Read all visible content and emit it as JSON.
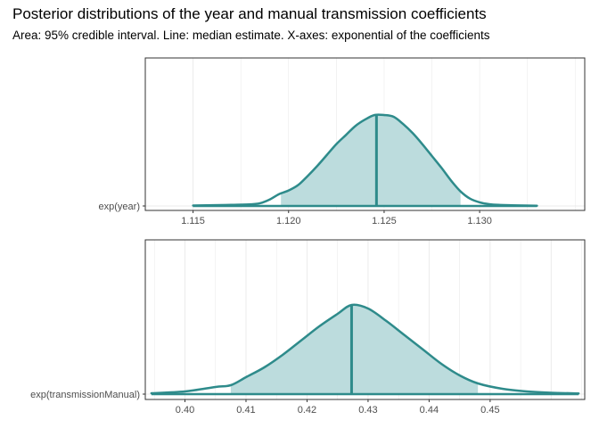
{
  "header": {
    "title": "Posterior distributions of the year and manual transmission coefficients",
    "subtitle": "Area: 95% credible interval. Line: median estimate. X-axes: exponential of the coefficients"
  },
  "colors": {
    "line": "#2e8b8b",
    "fill": "#bcdcdd",
    "grid": "#ebebeb",
    "border": "#333333"
  },
  "chart_data": [
    {
      "type": "area",
      "ylabel": "exp(year)",
      "xlim": [
        1.1125,
        1.1355
      ],
      "xticks": [
        1.115,
        1.12,
        1.125,
        1.13
      ],
      "xtick_labels": [
        "1.115",
        "1.120",
        "1.125",
        "1.130"
      ],
      "ci": [
        1.1196,
        1.129
      ],
      "median": 1.1246,
      "density": {
        "x": [
          1.115,
          1.117,
          1.118,
          1.1185,
          1.119,
          1.1195,
          1.12,
          1.1205,
          1.121,
          1.1215,
          1.122,
          1.1225,
          1.123,
          1.1235,
          1.124,
          1.1245,
          1.125,
          1.1255,
          1.126,
          1.1265,
          1.127,
          1.1275,
          1.128,
          1.1285,
          1.129,
          1.1295,
          1.13,
          1.1305,
          1.131,
          1.132,
          1.133
        ],
        "y": [
          0.005,
          0.012,
          0.018,
          0.03,
          0.07,
          0.13,
          0.17,
          0.23,
          0.33,
          0.44,
          0.56,
          0.68,
          0.78,
          0.88,
          0.95,
          1.0,
          1.0,
          0.98,
          0.9,
          0.8,
          0.68,
          0.55,
          0.42,
          0.28,
          0.16,
          0.08,
          0.04,
          0.02,
          0.012,
          0.006,
          0.003
        ]
      }
    },
    {
      "type": "area",
      "ylabel": "exp(transmissionManual)",
      "xlim": [
        0.3935,
        0.4655
      ],
      "xticks": [
        0.4,
        0.41,
        0.42,
        0.43,
        0.44,
        0.45
      ],
      "xtick_labels": [
        "0.40",
        "0.41",
        "0.42",
        "0.43",
        "0.44",
        "0.45"
      ],
      "ci": [
        0.4075,
        0.448
      ],
      "median": 0.4273,
      "density": {
        "x": [
          0.3945,
          0.4,
          0.405,
          0.4075,
          0.41,
          0.413,
          0.416,
          0.419,
          0.422,
          0.425,
          0.4273,
          0.43,
          0.433,
          0.436,
          0.439,
          0.442,
          0.445,
          0.448,
          0.452,
          0.456,
          0.46,
          0.4645
        ],
        "y": [
          0.01,
          0.03,
          0.08,
          0.1,
          0.19,
          0.3,
          0.44,
          0.6,
          0.76,
          0.9,
          1.0,
          0.96,
          0.82,
          0.66,
          0.5,
          0.34,
          0.21,
          0.12,
          0.06,
          0.03,
          0.015,
          0.008
        ]
      }
    }
  ]
}
